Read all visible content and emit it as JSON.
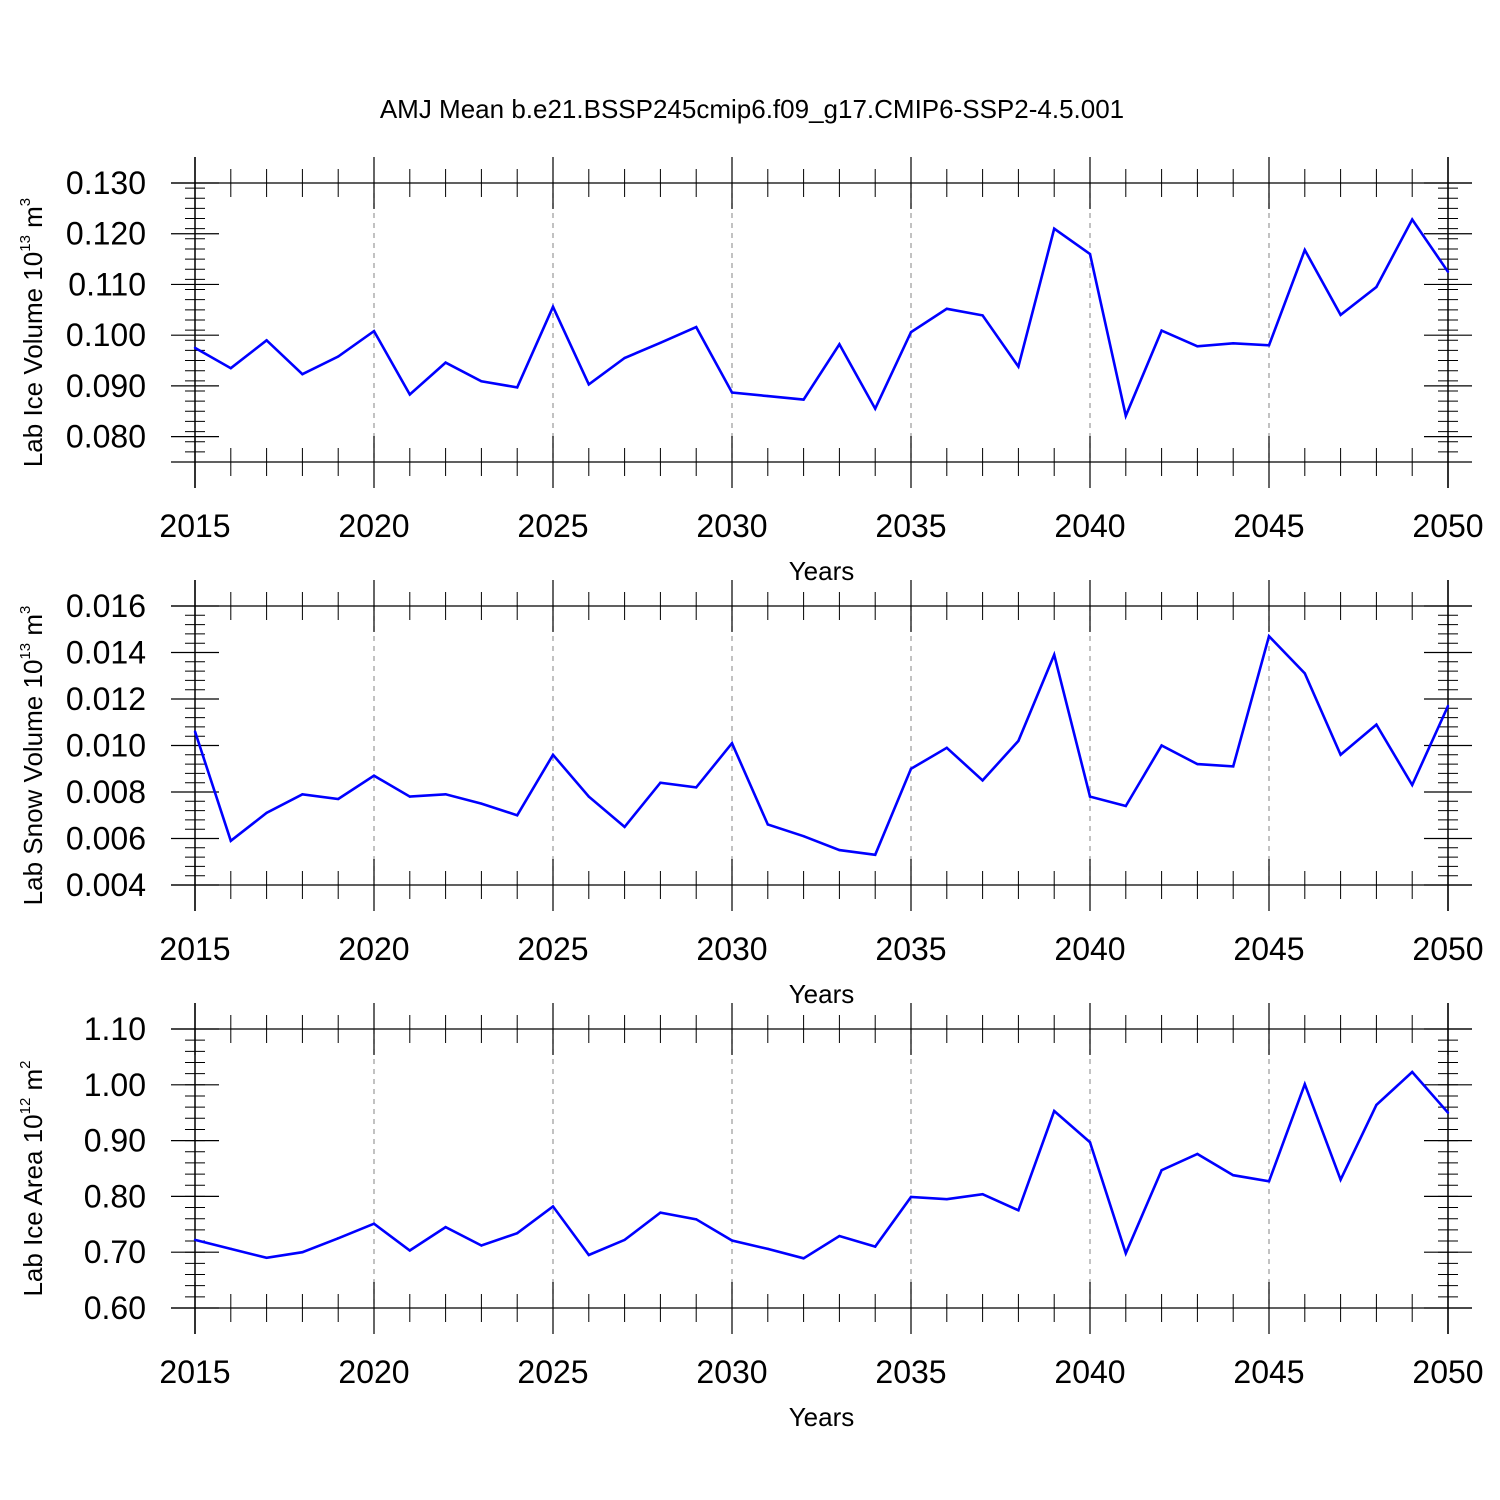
{
  "chart_data": {
    "title": "AMJ Mean b.e21.BSSP245cmip6.f09_g17.CMIP6-SSP2-4.5.001",
    "type": "line",
    "line_color": "#0000ff",
    "grid_color": "#999999",
    "panels": [
      {
        "ylabel": {
          "text": "Lab Ice Volume 10",
          "exp": "13",
          "unit": " m",
          "unit_exp": "3"
        },
        "xlabel": "Years",
        "xlim": [
          2015,
          2050
        ],
        "ylim": [
          0.075,
          0.13
        ],
        "yticks": [
          0.08,
          0.09,
          0.1,
          0.11,
          0.12,
          0.13
        ],
        "ytick_labels": [
          "0.080",
          "0.090",
          "0.100",
          "0.110",
          "0.120",
          "0.130"
        ],
        "xticks": [
          2015,
          2020,
          2025,
          2030,
          2035,
          2040,
          2045,
          2050
        ],
        "xtick_labels": [
          "2015",
          "2020",
          "2025",
          "2030",
          "2035",
          "2040",
          "2045",
          "2050"
        ],
        "x": [
          2015,
          2016,
          2017,
          2018,
          2019,
          2020,
          2021,
          2022,
          2023,
          2024,
          2025,
          2026,
          2027,
          2028,
          2029,
          2030,
          2031,
          2032,
          2033,
          2034,
          2035,
          2036,
          2037,
          2038,
          2039,
          2040,
          2041,
          2042,
          2043,
          2044,
          2045,
          2046,
          2047,
          2048,
          2049,
          2050
        ],
        "values": [
          0.0975,
          0.0935,
          0.099,
          0.0923,
          0.0958,
          0.1008,
          0.0883,
          0.0946,
          0.0909,
          0.0897,
          0.1056,
          0.0903,
          0.0955,
          0.0985,
          0.1016,
          0.0887,
          0.088,
          0.0873,
          0.0982,
          0.0855,
          0.1006,
          0.1052,
          0.1039,
          0.0938,
          0.121,
          0.116,
          0.0841,
          0.1009,
          0.0978,
          0.0984,
          0.098,
          0.1168,
          0.104,
          0.1095,
          0.1228,
          0.1125
        ]
      },
      {
        "ylabel": {
          "text": "Lab Snow Volume 10",
          "exp": "13",
          "unit": " m",
          "unit_exp": "3"
        },
        "xlabel": "Years",
        "xlim": [
          2015,
          2050
        ],
        "ylim": [
          0.004,
          0.016
        ],
        "yticks": [
          0.004,
          0.006,
          0.008,
          0.01,
          0.012,
          0.014,
          0.016
        ],
        "ytick_labels": [
          "0.004",
          "0.006",
          "0.008",
          "0.010",
          "0.012",
          "0.014",
          "0.016"
        ],
        "xticks": [
          2015,
          2020,
          2025,
          2030,
          2035,
          2040,
          2045,
          2050
        ],
        "xtick_labels": [
          "2015",
          "2020",
          "2025",
          "2030",
          "2035",
          "2040",
          "2045",
          "2050"
        ],
        "x": [
          2015,
          2016,
          2017,
          2018,
          2019,
          2020,
          2021,
          2022,
          2023,
          2024,
          2025,
          2026,
          2027,
          2028,
          2029,
          2030,
          2031,
          2032,
          2033,
          2034,
          2035,
          2036,
          2037,
          2038,
          2039,
          2040,
          2041,
          2042,
          2043,
          2044,
          2045,
          2046,
          2047,
          2048,
          2049,
          2050
        ],
        "values": [
          0.0106,
          0.0059,
          0.0071,
          0.0079,
          0.0077,
          0.0087,
          0.0078,
          0.0079,
          0.0075,
          0.007,
          0.0096,
          0.0078,
          0.0065,
          0.0084,
          0.0082,
          0.0101,
          0.0066,
          0.0061,
          0.0055,
          0.0053,
          0.009,
          0.0099,
          0.0085,
          0.0102,
          0.0139,
          0.0078,
          0.0074,
          0.01,
          0.0092,
          0.0091,
          0.0147,
          0.0131,
          0.0096,
          0.0109,
          0.0083,
          0.0117
        ]
      },
      {
        "ylabel": {
          "text": "Lab Ice Area 10",
          "exp": "12",
          "unit": " m",
          "unit_exp": "2"
        },
        "xlabel": "Years",
        "xlim": [
          2015,
          2050
        ],
        "ylim": [
          0.6,
          1.1
        ],
        "yticks": [
          0.6,
          0.7,
          0.8,
          0.9,
          1.0,
          1.1
        ],
        "ytick_labels": [
          "0.60",
          "0.70",
          "0.80",
          "0.90",
          "1.00",
          "1.10"
        ],
        "xticks": [
          2015,
          2020,
          2025,
          2030,
          2035,
          2040,
          2045,
          2050
        ],
        "xtick_labels": [
          "2015",
          "2020",
          "2025",
          "2030",
          "2035",
          "2040",
          "2045",
          "2050"
        ],
        "x": [
          2015,
          2016,
          2017,
          2018,
          2019,
          2020,
          2021,
          2022,
          2023,
          2024,
          2025,
          2026,
          2027,
          2028,
          2029,
          2030,
          2031,
          2032,
          2033,
          2034,
          2035,
          2036,
          2037,
          2038,
          2039,
          2040,
          2041,
          2042,
          2043,
          2044,
          2045,
          2046,
          2047,
          2048,
          2049,
          2050
        ],
        "values": [
          0.722,
          0.706,
          0.69,
          0.7,
          0.725,
          0.751,
          0.703,
          0.745,
          0.712,
          0.734,
          0.782,
          0.695,
          0.722,
          0.771,
          0.759,
          0.721,
          0.706,
          0.689,
          0.729,
          0.71,
          0.799,
          0.795,
          0.804,
          0.775,
          0.953,
          0.897,
          0.698,
          0.847,
          0.876,
          0.838,
          0.827,
          1.001,
          0.83,
          0.964,
          1.023,
          0.95
        ]
      }
    ]
  }
}
